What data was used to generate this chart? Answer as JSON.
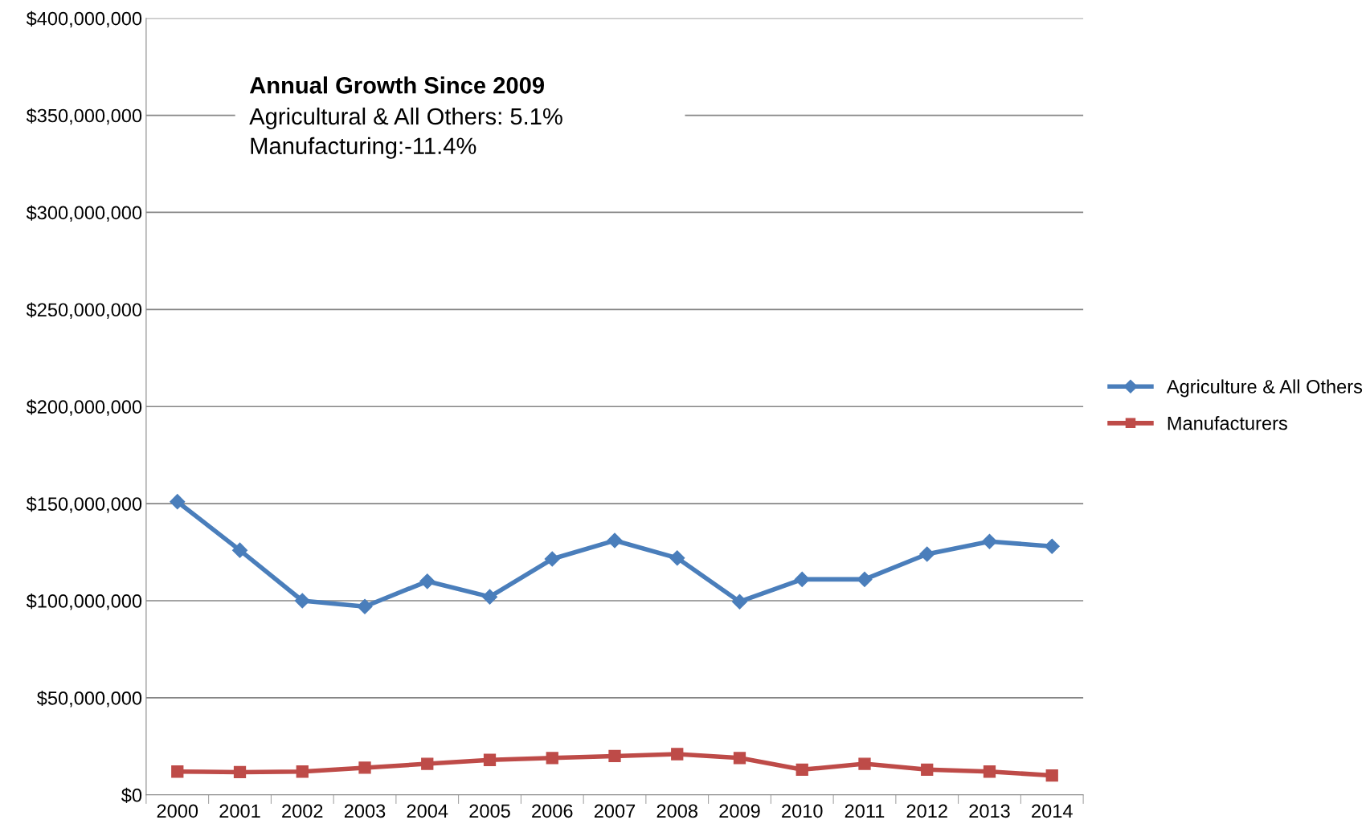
{
  "chart_data": {
    "type": "line",
    "title": "Annual Growth Since 2009",
    "annotations": [
      "Agricultural & All Others: 5.1%",
      "Manufacturing:-11.4%"
    ],
    "categories": [
      "2000",
      "2001",
      "2002",
      "2003",
      "2004",
      "2005",
      "2006",
      "2007",
      "2008",
      "2009",
      "2010",
      "2011",
      "2012",
      "2013",
      "2014"
    ],
    "series": [
      {
        "name": "Agriculture & All Others",
        "color": "#4a7ebb",
        "marker": "diamond",
        "values": [
          151000000,
          126000000,
          100000000,
          97000000,
          110000000,
          102000000,
          121500000,
          131000000,
          122000000,
          99500000,
          111000000,
          111000000,
          124000000,
          130500000,
          128000000
        ]
      },
      {
        "name": "Manufacturers",
        "color": "#be4b48",
        "marker": "square",
        "values": [
          12000000,
          11700000,
          12000000,
          14000000,
          16000000,
          18000000,
          19000000,
          20000000,
          21000000,
          19000000,
          13000000,
          16000000,
          13000000,
          12000000,
          10000000
        ]
      }
    ],
    "ylim": [
      0,
      400000000
    ],
    "yticks": [
      {
        "value": 0,
        "label": "$0"
      },
      {
        "value": 50000000,
        "label": "$50,000,000"
      },
      {
        "value": 100000000,
        "label": "$100,000,000"
      },
      {
        "value": 150000000,
        "label": "$150,000,000"
      },
      {
        "value": 200000000,
        "label": "$200,000,000"
      },
      {
        "value": 250000000,
        "label": "$250,000,000"
      },
      {
        "value": 300000000,
        "label": "$300,000,000"
      },
      {
        "value": 350000000,
        "label": "$350,000,000"
      },
      {
        "value": 400000000,
        "label": "$400,000,000"
      }
    ],
    "grid": "y",
    "legend": "right",
    "line_style": "solid"
  }
}
